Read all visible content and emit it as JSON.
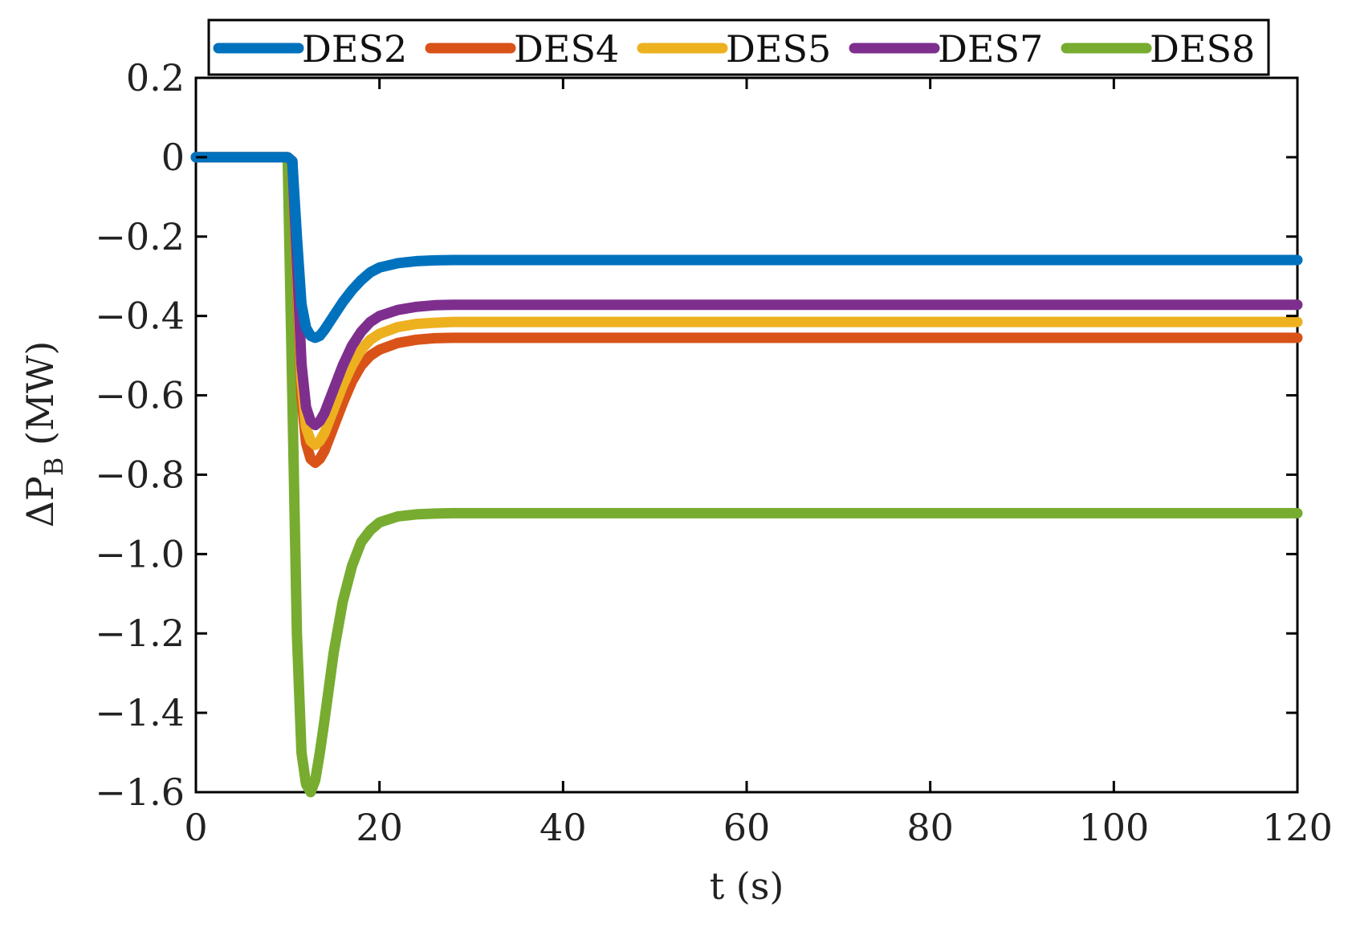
{
  "chart_data": {
    "type": "line",
    "title": "",
    "xlabel": "t (s)",
    "ylabel": "ΔP",
    "ylabel_subscript": "B",
    "ylabel_unit": " (MW)",
    "xlim": [
      0,
      120
    ],
    "ylim": [
      -1.6,
      0.2
    ],
    "grid": false,
    "legend_position": "top",
    "xticks": [
      0,
      20,
      40,
      60,
      80,
      100,
      120
    ],
    "xtick_labels": [
      "0",
      "20",
      "40",
      "60",
      "80",
      "100",
      "120"
    ],
    "yticks": [
      0.2,
      0,
      -0.2,
      -0.4,
      -0.6,
      -0.8,
      -1.0,
      -1.2,
      -1.4,
      -1.6
    ],
    "ytick_labels": [
      "0.2",
      "0",
      "−0.2",
      "−0.4",
      "−0.6",
      "−0.8",
      "−1.0",
      "−1.2",
      "−1.4",
      "−1.6"
    ],
    "series": [
      {
        "name": "DES8",
        "color": "#77AC30",
        "x": [
          0,
          1,
          2,
          3,
          4,
          5,
          6,
          7,
          8,
          9,
          10,
          10.5,
          11,
          11.5,
          12,
          12.5,
          13,
          13.5,
          14,
          15,
          16,
          17,
          18,
          19,
          20,
          22,
          24,
          26,
          28,
          30,
          40,
          60,
          80,
          100,
          120
        ],
        "y": [
          0,
          0,
          0,
          0,
          0,
          0,
          0,
          0,
          0,
          0,
          0,
          -0.6,
          -1.2,
          -1.5,
          -1.58,
          -1.6,
          -1.57,
          -1.5,
          -1.42,
          -1.25,
          -1.12,
          -1.03,
          -0.97,
          -0.94,
          -0.92,
          -0.905,
          -0.9,
          -0.898,
          -0.897,
          -0.897,
          -0.897,
          -0.897,
          -0.897,
          -0.897,
          -0.897
        ]
      },
      {
        "name": "DES4",
        "color": "#D95319",
        "x": [
          0,
          2,
          4,
          6,
          8,
          10,
          10.5,
          11,
          11.5,
          12,
          12.5,
          13,
          13.5,
          14,
          15,
          16,
          17,
          18,
          19,
          20,
          22,
          24,
          26,
          28,
          30,
          40,
          60,
          80,
          100,
          120
        ],
        "y": [
          0,
          0,
          0,
          0,
          0,
          0,
          -0.01,
          -0.3,
          -0.6,
          -0.72,
          -0.76,
          -0.77,
          -0.76,
          -0.74,
          -0.68,
          -0.62,
          -0.565,
          -0.525,
          -0.5,
          -0.485,
          -0.468,
          -0.46,
          -0.456,
          -0.455,
          -0.455,
          -0.455,
          -0.455,
          -0.455,
          -0.455,
          -0.455
        ]
      },
      {
        "name": "DES5",
        "color": "#EDB120",
        "x": [
          0,
          2,
          4,
          6,
          8,
          10,
          10.5,
          11,
          11.5,
          12,
          12.5,
          13,
          13.5,
          14,
          15,
          16,
          17,
          18,
          19,
          20,
          22,
          24,
          26,
          28,
          30,
          40,
          60,
          80,
          100,
          120
        ],
        "y": [
          0,
          0,
          0,
          0,
          0,
          0,
          -0.01,
          -0.28,
          -0.56,
          -0.68,
          -0.715,
          -0.725,
          -0.715,
          -0.695,
          -0.635,
          -0.575,
          -0.525,
          -0.485,
          -0.46,
          -0.445,
          -0.428,
          -0.42,
          -0.417,
          -0.415,
          -0.415,
          -0.415,
          -0.415,
          -0.415,
          -0.415,
          -0.415
        ]
      },
      {
        "name": "DES7",
        "color": "#7E2F8E",
        "x": [
          0,
          2,
          4,
          6,
          8,
          10,
          10.5,
          11,
          11.5,
          12,
          12.5,
          13,
          13.5,
          14,
          15,
          16,
          17,
          18,
          19,
          20,
          22,
          24,
          26,
          28,
          30,
          40,
          60,
          80,
          100,
          120
        ],
        "y": [
          0,
          0,
          0,
          0,
          0,
          0,
          -0.01,
          -0.26,
          -0.52,
          -0.63,
          -0.665,
          -0.675,
          -0.665,
          -0.645,
          -0.585,
          -0.525,
          -0.475,
          -0.44,
          -0.415,
          -0.4,
          -0.385,
          -0.377,
          -0.373,
          -0.372,
          -0.372,
          -0.372,
          -0.372,
          -0.372,
          -0.372,
          -0.372
        ]
      },
      {
        "name": "DES2",
        "color": "#0072BD",
        "x": [
          0,
          2,
          4,
          6,
          8,
          10,
          10.5,
          11,
          11.5,
          12,
          12.5,
          13,
          13.5,
          14,
          15,
          16,
          17,
          18,
          19,
          20,
          22,
          24,
          26,
          28,
          30,
          40,
          60,
          80,
          100,
          120
        ],
        "y": [
          0,
          0,
          0,
          0,
          0,
          0,
          -0.01,
          -0.2,
          -0.37,
          -0.43,
          -0.45,
          -0.455,
          -0.45,
          -0.435,
          -0.4,
          -0.365,
          -0.335,
          -0.31,
          -0.29,
          -0.278,
          -0.267,
          -0.262,
          -0.26,
          -0.259,
          -0.259,
          -0.259,
          -0.259,
          -0.259,
          -0.259,
          -0.259
        ]
      }
    ],
    "legend_order": [
      "DES2",
      "DES4",
      "DES5",
      "DES7",
      "DES8"
    ]
  }
}
